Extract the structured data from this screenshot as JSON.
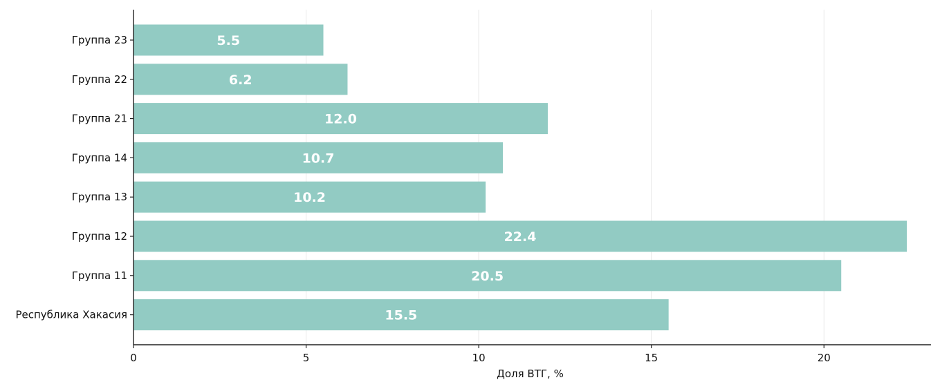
{
  "chart_data": {
    "type": "bar",
    "orientation": "horizontal",
    "categories": [
      "Группа 23",
      "Группа 22",
      "Группа 21",
      "Группа 14",
      "Группа 13",
      "Группа 12",
      "Группа 11",
      "Республика Хакасия"
    ],
    "values": [
      5.5,
      6.2,
      12.0,
      10.7,
      10.2,
      22.4,
      20.5,
      15.5
    ],
    "value_labels": [
      "5.5",
      "6.2",
      "12.0",
      "10.7",
      "10.2",
      "22.4",
      "20.5",
      "15.5"
    ],
    "xlabel": "Доля ВТГ, %",
    "ylabel": "",
    "xlim": [
      0,
      23.1
    ],
    "xticks": [
      0,
      5,
      10,
      15,
      20
    ],
    "xtick_labels": [
      "0",
      "5",
      "10",
      "15",
      "20"
    ],
    "grid": "vertical",
    "bar_color": "#92cbc3",
    "grid_color": "#e8e8e8",
    "axis_color": "#222222"
  }
}
